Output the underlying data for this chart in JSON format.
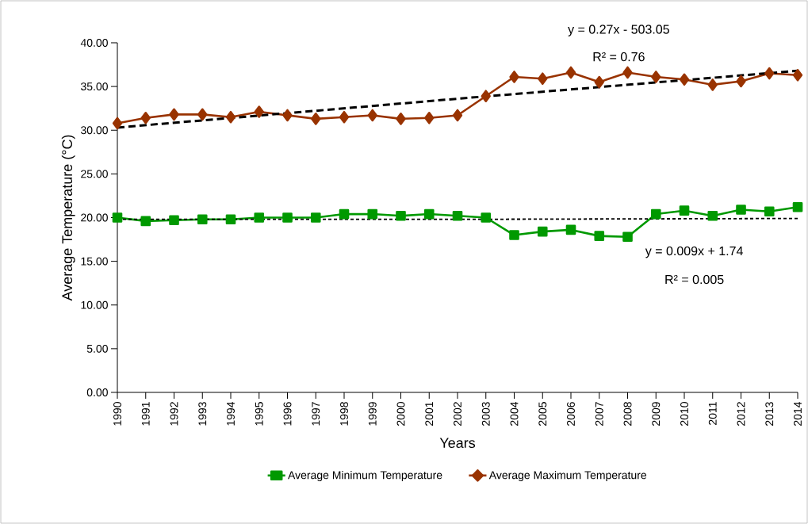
{
  "chart_data": {
    "type": "line",
    "xlabel": "Years",
    "ylabel": "Average Temperature (°C)",
    "x": [
      1990,
      1991,
      1992,
      1993,
      1994,
      1995,
      1996,
      1997,
      1998,
      1999,
      2000,
      2001,
      2002,
      2003,
      2004,
      2005,
      2006,
      2007,
      2008,
      2009,
      2010,
      2011,
      2012,
      2013,
      2014
    ],
    "series": [
      {
        "name": "Average Minimum Temperature",
        "color": "#009900",
        "marker": "square",
        "values": [
          20.0,
          19.6,
          19.7,
          19.8,
          19.8,
          20.0,
          20.0,
          20.0,
          20.4,
          20.4,
          20.2,
          20.4,
          20.2,
          20.0,
          18.0,
          18.4,
          18.6,
          17.9,
          17.8,
          20.4,
          20.8,
          20.2,
          20.9,
          20.7,
          21.2
        ]
      },
      {
        "name": "Average Maximum Temperature",
        "color": "#993300",
        "marker": "diamond",
        "values": [
          30.8,
          31.4,
          31.8,
          31.8,
          31.5,
          32.1,
          31.7,
          31.3,
          31.5,
          31.7,
          31.3,
          31.4,
          31.7,
          33.9,
          36.1,
          35.9,
          36.6,
          35.5,
          36.6,
          36.1,
          35.8,
          35.2,
          35.6,
          36.5,
          36.3
        ]
      },
      {
        "type": "line",
        "color": "#000000",
        "marker": "none",
        "line_style": "dotted",
        "x": [
          1990,
          2002,
          2014
        ],
        "values": [
          19.8,
          19.8,
          19.9
        ]
      },
      {
        "type": "line",
        "color": "#000000",
        "marker": "none",
        "line_style": "dashed",
        "x": [
          1990,
          2002,
          2014
        ],
        "values": [
          30.3,
          33.6,
          36.8
        ]
      }
    ],
    "xlim": [
      1990,
      2014
    ],
    "ylim": [
      0,
      40
    ],
    "xticks": [
      1990,
      1991,
      1992,
      1993,
      1994,
      1995,
      1996,
      1997,
      1998,
      1999,
      2000,
      2001,
      2002,
      2003,
      2004,
      2005,
      2006,
      2007,
      2008,
      2009,
      2010,
      2011,
      2012,
      2013,
      2014
    ],
    "yticks": [
      {
        "value": 0,
        "label": "0.00"
      },
      {
        "value": 5,
        "label": "5.00"
      },
      {
        "value": 10,
        "label": "10.00"
      },
      {
        "value": 15,
        "label": "15.00"
      },
      {
        "value": 20,
        "label": "20.00"
      },
      {
        "value": 25,
        "label": "25.00"
      },
      {
        "value": 30,
        "label": "30.00"
      },
      {
        "value": 35,
        "label": "35.00"
      },
      {
        "value": 40,
        "label": "40.00"
      }
    ],
    "annotations": [
      "y = 0.27x - 503.05",
      "R² = 0.76",
      "y = 0.009x + 1.74",
      "R² = 0.005"
    ],
    "legend": "bottom",
    "grid": false,
    "line_style": "solid"
  }
}
